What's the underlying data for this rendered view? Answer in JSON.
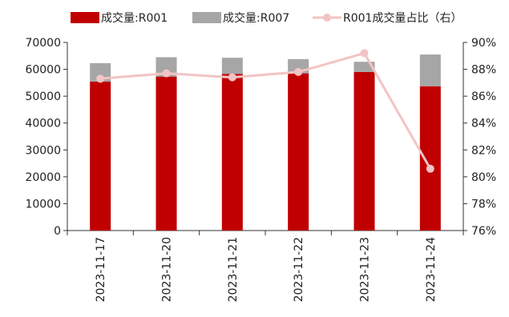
{
  "chart_data": {
    "type": "bar",
    "stacked": true,
    "categories": [
      "2023-11-17",
      "2023-11-20",
      "2023-11-21",
      "2023-11-22",
      "2023-11-23",
      "2023-11-24"
    ],
    "series": [
      {
        "name": "成交量:R001",
        "axis": "left",
        "color": "#C00000",
        "values": [
          55400,
          57300,
          58300,
          58500,
          59000,
          53700
        ]
      },
      {
        "name": "成交量:R007",
        "axis": "left",
        "color": "#A6A6A6",
        "values": [
          6900,
          7200,
          6000,
          5300,
          3800,
          11800
        ]
      },
      {
        "name": "R001成交量占比（右）",
        "type": "line",
        "axis": "right",
        "color": "#F2C4C4",
        "values": [
          87.3,
          87.7,
          87.4,
          87.8,
          89.2,
          80.6
        ]
      }
    ],
    "y_left": {
      "min": 0,
      "max": 70000,
      "ticks": [
        0,
        10000,
        20000,
        30000,
        40000,
        50000,
        60000,
        70000
      ]
    },
    "y_right": {
      "min": 76,
      "max": 90,
      "ticks": [
        "76%",
        "78%",
        "80%",
        "82%",
        "84%",
        "86%",
        "88%",
        "90%"
      ]
    },
    "legend_position": "top",
    "grid": false
  }
}
